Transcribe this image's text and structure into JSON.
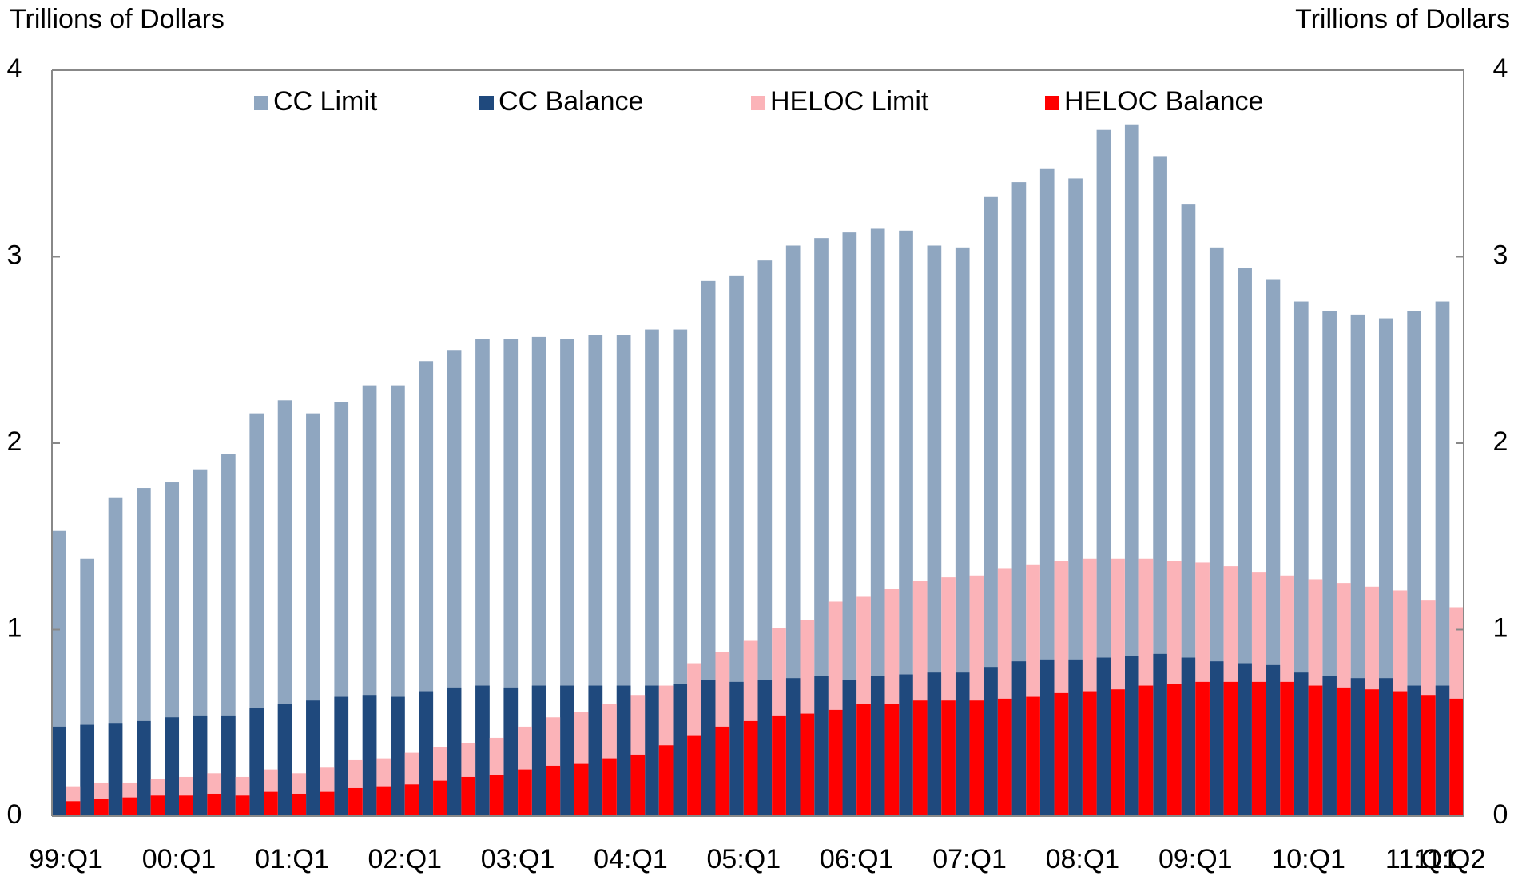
{
  "chart_data": {
    "type": "bar",
    "ylabel": "Trillions of Dollars",
    "y2label": "Trillions of Dollars",
    "categories": [
      "99:Q1",
      null,
      null,
      null,
      "00:Q1",
      null,
      null,
      null,
      "01:Q1",
      null,
      null,
      null,
      "02:Q1",
      null,
      null,
      null,
      "03:Q1",
      null,
      null,
      null,
      "04:Q1",
      null,
      null,
      null,
      "05:Q1",
      null,
      null,
      null,
      "06:Q1",
      null,
      null,
      null,
      "07:Q1",
      null,
      null,
      null,
      "08:Q1",
      null,
      null,
      null,
      "09:Q1",
      null,
      null,
      null,
      "10:Q1",
      null,
      null,
      null,
      "11:Q1",
      "11:Q2"
    ],
    "series": [
      {
        "name": "CC Limit",
        "color": "#8fa6c0",
        "values": [
          1.53,
          1.38,
          1.71,
          1.76,
          1.79,
          1.86,
          1.94,
          2.16,
          2.23,
          2.16,
          2.22,
          2.31,
          2.31,
          2.44,
          2.5,
          2.56,
          2.56,
          2.57,
          2.56,
          2.58,
          2.58,
          2.61,
          2.61,
          2.87,
          2.9,
          2.98,
          3.06,
          3.1,
          3.13,
          3.15,
          3.14,
          3.06,
          3.05,
          3.32,
          3.4,
          3.47,
          3.42,
          3.68,
          3.71,
          3.54,
          3.28,
          3.05,
          2.94,
          2.88,
          2.76,
          2.71,
          2.69,
          2.67,
          2.71,
          2.76
        ]
      },
      {
        "name": "CC Balance",
        "color": "#1f497d",
        "values": [
          0.48,
          0.49,
          0.5,
          0.51,
          0.53,
          0.54,
          0.54,
          0.58,
          0.6,
          0.62,
          0.64,
          0.65,
          0.64,
          0.67,
          0.69,
          0.7,
          0.69,
          0.7,
          0.7,
          0.7,
          0.7,
          0.7,
          0.71,
          0.73,
          0.72,
          0.73,
          0.74,
          0.75,
          0.73,
          0.75,
          0.76,
          0.77,
          0.77,
          0.8,
          0.83,
          0.84,
          0.84,
          0.85,
          0.86,
          0.87,
          0.85,
          0.83,
          0.82,
          0.81,
          0.77,
          0.75,
          0.74,
          0.74,
          0.7,
          0.7
        ]
      },
      {
        "name": "HELOC Limit",
        "color": "#fbb3b8",
        "values": [
          0.16,
          0.18,
          0.18,
          0.2,
          0.21,
          0.23,
          0.21,
          0.25,
          0.23,
          0.26,
          0.3,
          0.31,
          0.34,
          0.37,
          0.39,
          0.42,
          0.48,
          0.53,
          0.56,
          0.6,
          0.65,
          0.7,
          0.82,
          0.88,
          0.94,
          1.01,
          1.05,
          1.15,
          1.18,
          1.22,
          1.26,
          1.28,
          1.29,
          1.33,
          1.35,
          1.37,
          1.38,
          1.38,
          1.38,
          1.37,
          1.36,
          1.34,
          1.31,
          1.29,
          1.27,
          1.25,
          1.23,
          1.21,
          1.16,
          1.12
        ]
      },
      {
        "name": "HELOC Balance",
        "color": "#ff0000",
        "values": [
          0.08,
          0.09,
          0.1,
          0.11,
          0.11,
          0.12,
          0.11,
          0.13,
          0.12,
          0.13,
          0.15,
          0.16,
          0.17,
          0.19,
          0.21,
          0.22,
          0.25,
          0.27,
          0.28,
          0.31,
          0.33,
          0.38,
          0.43,
          0.48,
          0.51,
          0.54,
          0.55,
          0.57,
          0.6,
          0.6,
          0.62,
          0.62,
          0.62,
          0.63,
          0.64,
          0.66,
          0.67,
          0.68,
          0.7,
          0.71,
          0.72,
          0.72,
          0.72,
          0.72,
          0.7,
          0.69,
          0.68,
          0.67,
          0.65,
          0.63
        ]
      }
    ],
    "ylim": [
      0,
      4
    ],
    "yticks": [
      0,
      1,
      2,
      3,
      4
    ],
    "y2lim": [
      0,
      4
    ],
    "y2ticks": [
      0,
      1,
      2,
      3,
      4
    ],
    "legend": "top"
  }
}
